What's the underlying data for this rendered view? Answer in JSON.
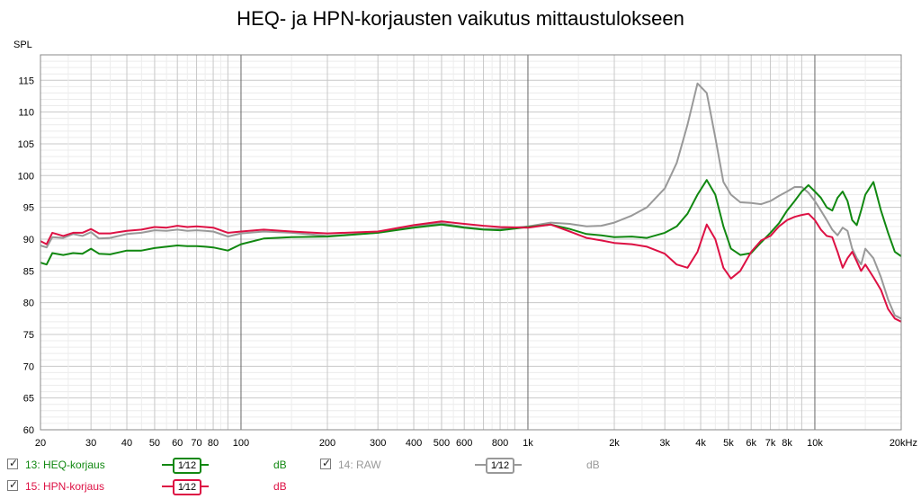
{
  "title": "HEQ- ja HPN-korjausten vaikutus mittaustulokseen",
  "colors": {
    "heq": "#118811",
    "raw": "#999999",
    "hpn": "#dd1144"
  },
  "chart_data": {
    "type": "line",
    "title": "HEQ- ja HPN-korjausten vaikutus mittaustulokseen",
    "xlabel": "",
    "ylabel": "SPL",
    "xscale": "log",
    "xlim": [
      20,
      20000
    ],
    "ylim": [
      60,
      119
    ],
    "grid": true,
    "x_ticks": [
      "20",
      "30",
      "40",
      "50",
      "60",
      "70",
      "80",
      "100",
      "200",
      "300",
      "400",
      "500",
      "600",
      "800",
      "1k",
      "2k",
      "3k",
      "4k",
      "5k",
      "6k",
      "7k",
      "8k",
      "10k",
      "20kHz"
    ],
    "y_ticks": [
      "60",
      "65",
      "70",
      "75",
      "80",
      "85",
      "90",
      "95",
      "100",
      "105",
      "110",
      "115"
    ],
    "y_unit": "SPL",
    "series": [
      {
        "name": "14: RAW",
        "color": "#999999",
        "x": [
          20,
          21,
          22,
          24,
          26,
          28,
          30,
          32,
          35,
          40,
          45,
          50,
          55,
          60,
          65,
          70,
          75,
          80,
          90,
          100,
          120,
          150,
          200,
          300,
          400,
          500,
          600,
          700,
          800,
          1000,
          1200,
          1400,
          1600,
          1800,
          2000,
          2300,
          2600,
          3000,
          3300,
          3600,
          3900,
          4200,
          4500,
          4800,
          5100,
          5500,
          6000,
          6500,
          7000,
          7500,
          8000,
          8500,
          9000,
          9500,
          10000,
          10500,
          11000,
          11500,
          12000,
          12500,
          13000,
          13500,
          14000,
          14500,
          15000,
          16000,
          17000,
          18000,
          19000,
          20000
        ],
        "y": [
          89,
          88.7,
          90.3,
          90.2,
          90.8,
          90.5,
          91.1,
          90.1,
          90.2,
          90.8,
          91,
          91.4,
          91.3,
          91.5,
          91.3,
          91.4,
          91.3,
          91.2,
          90.4,
          90.9,
          91.2,
          91,
          90.5,
          91,
          92,
          92.5,
          91.9,
          91.6,
          91.6,
          92,
          92.6,
          92.4,
          92,
          92.1,
          92.6,
          93.7,
          95,
          98,
          102,
          108,
          114.5,
          113,
          106,
          99,
          97,
          95.8,
          95.7,
          95.5,
          96,
          96.8,
          97.5,
          98.2,
          98.2,
          97.3,
          96,
          94.5,
          93,
          91.5,
          90.6,
          91.8,
          91.3,
          88.5,
          87,
          86,
          88.5,
          87,
          84,
          80.5,
          78,
          77.5
        ]
      },
      {
        "name": "13: HEQ-korjaus",
        "color": "#118811",
        "x": [
          20,
          21,
          22,
          24,
          26,
          28,
          30,
          32,
          35,
          40,
          45,
          50,
          55,
          60,
          65,
          70,
          75,
          80,
          90,
          100,
          120,
          150,
          200,
          300,
          400,
          500,
          600,
          700,
          800,
          1000,
          1200,
          1400,
          1600,
          1800,
          2000,
          2300,
          2600,
          3000,
          3300,
          3600,
          3900,
          4200,
          4500,
          4800,
          5100,
          5500,
          6000,
          6500,
          7000,
          7500,
          8000,
          8500,
          9000,
          9500,
          10000,
          10500,
          11000,
          11500,
          12000,
          12500,
          13000,
          13500,
          14000,
          14500,
          15000,
          16000,
          17000,
          18000,
          19000,
          20000
        ],
        "y": [
          86.3,
          86,
          87.8,
          87.5,
          87.8,
          87.7,
          88.5,
          87.7,
          87.6,
          88.2,
          88.2,
          88.6,
          88.8,
          89,
          88.9,
          88.9,
          88.8,
          88.7,
          88.2,
          89.2,
          90.1,
          90.3,
          90.4,
          91,
          91.8,
          92.3,
          91.8,
          91.5,
          91.4,
          91.9,
          92.3,
          91.6,
          90.8,
          90.6,
          90.3,
          90.4,
          90.2,
          91,
          92,
          94,
          97,
          99.3,
          97,
          92,
          88.5,
          87.5,
          87.8,
          89.5,
          91,
          92.5,
          94.5,
          96,
          97.5,
          98.5,
          97.5,
          96.5,
          95,
          94.5,
          96.5,
          97.5,
          96,
          93,
          92.2,
          94.5,
          97,
          99,
          94.5,
          91,
          88,
          87.3
        ]
      },
      {
        "name": "15: HPN-korjaus",
        "color": "#dd1144",
        "x": [
          20,
          21,
          22,
          24,
          26,
          28,
          30,
          32,
          35,
          40,
          45,
          50,
          55,
          60,
          65,
          70,
          75,
          80,
          90,
          100,
          120,
          150,
          200,
          300,
          400,
          500,
          600,
          700,
          800,
          1000,
          1200,
          1400,
          1600,
          1800,
          2000,
          2300,
          2600,
          3000,
          3300,
          3600,
          3900,
          4200,
          4500,
          4800,
          5100,
          5500,
          6000,
          6500,
          7000,
          7500,
          8000,
          8500,
          9000,
          9500,
          10000,
          10500,
          11000,
          11500,
          12000,
          12500,
          13000,
          13500,
          14000,
          14500,
          15000,
          16000,
          17000,
          18000,
          19000,
          20000
        ],
        "y": [
          89.7,
          89.2,
          91,
          90.5,
          91,
          91,
          91.6,
          90.9,
          90.9,
          91.3,
          91.5,
          91.9,
          91.8,
          92.1,
          91.9,
          92,
          91.9,
          91.8,
          91,
          91.2,
          91.5,
          91.2,
          90.9,
          91.2,
          92.2,
          92.8,
          92.4,
          92.1,
          91.9,
          91.8,
          92.3,
          91.2,
          90.2,
          89.8,
          89.4,
          89.2,
          88.8,
          87.7,
          86,
          85.5,
          88,
          92.3,
          90,
          85.5,
          83.8,
          85,
          88,
          89.8,
          90.5,
          92,
          93,
          93.5,
          93.8,
          94,
          93,
          91.5,
          90.5,
          90.3,
          88,
          85.5,
          87,
          88,
          86.5,
          85,
          86,
          84,
          82,
          79,
          77.5,
          77
        ]
      }
    ]
  },
  "legend": [
    {
      "name": "13: HEQ-korjaus",
      "checked": "✓",
      "smoothing": "1⁄12",
      "unit": "dB"
    },
    {
      "name": "14: RAW",
      "checked": "✓",
      "smoothing": "1⁄12",
      "unit": "dB"
    },
    {
      "name": "15: HPN-korjaus",
      "checked": "✓",
      "smoothing": "1⁄12",
      "unit": "dB"
    }
  ]
}
